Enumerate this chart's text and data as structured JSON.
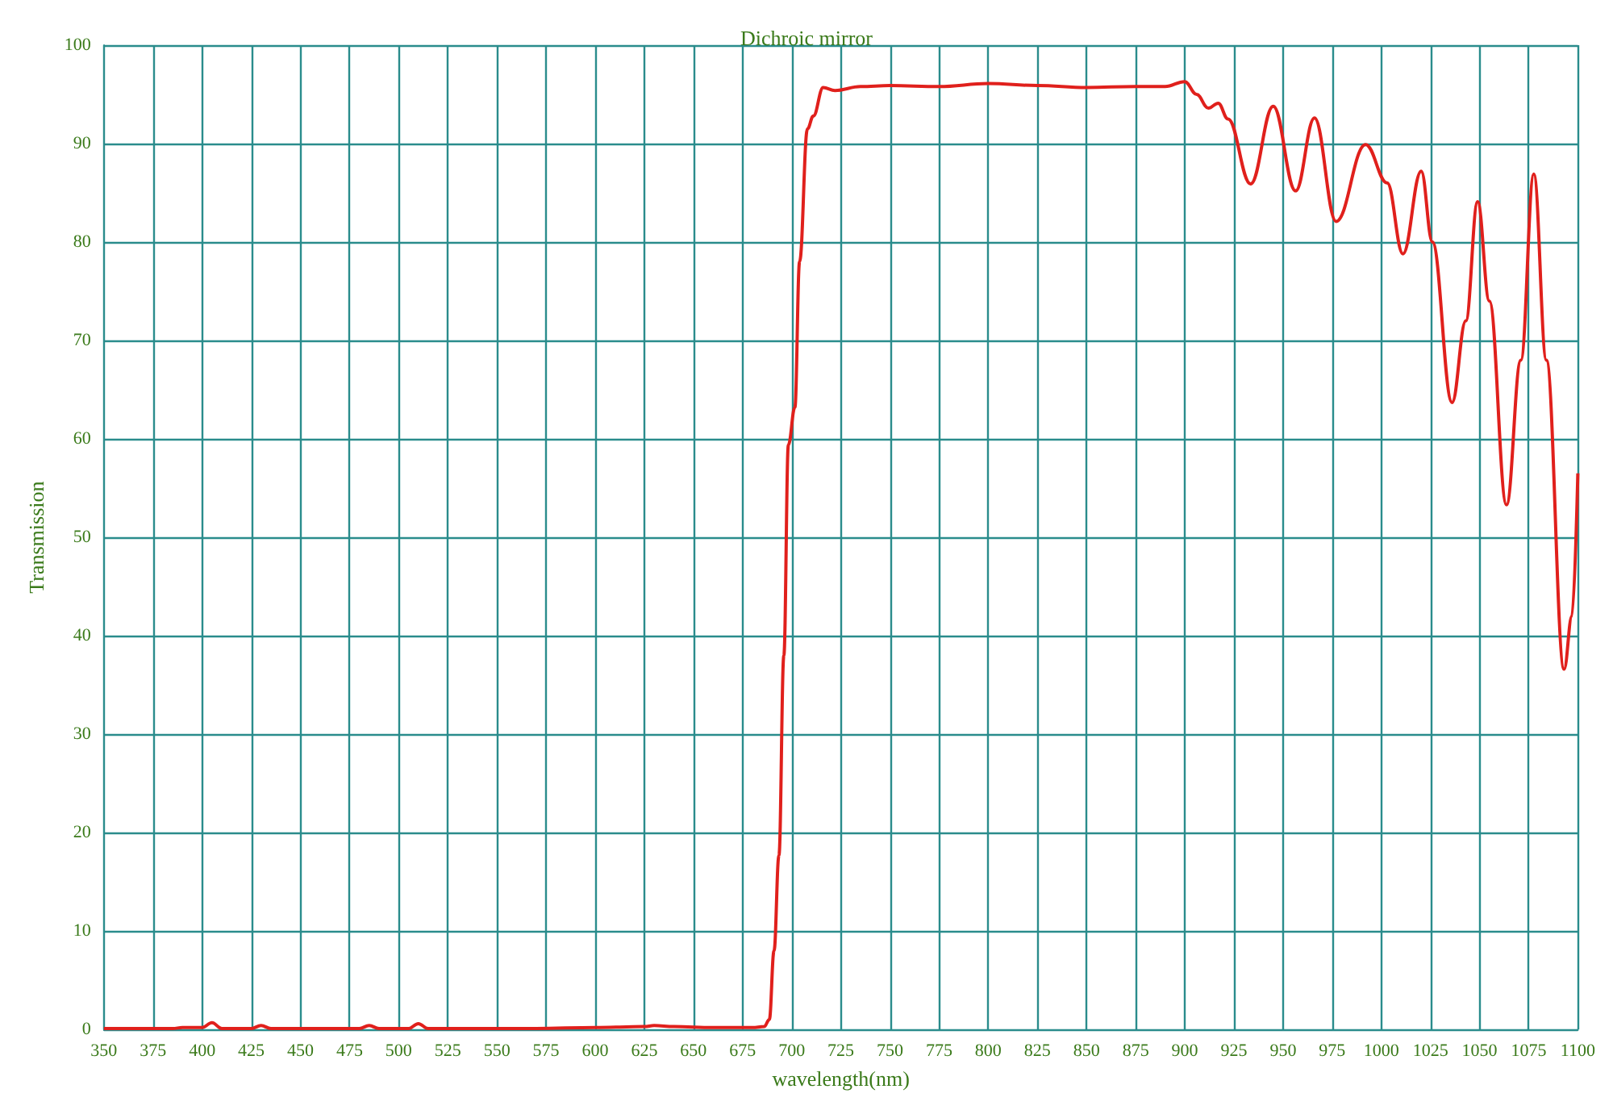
{
  "chart_data": {
    "type": "line",
    "title": "Dichroic mirror",
    "xlabel": "wavelength(nm)",
    "ylabel": "Transmission",
    "x": [
      350,
      385,
      390,
      400,
      405,
      410,
      425,
      430,
      435,
      480,
      485,
      490,
      505,
      510,
      515,
      570,
      600,
      625,
      630,
      640,
      660,
      680,
      686,
      688.6,
      691,
      693.5,
      696,
      698.3,
      701.6,
      704,
      708,
      711,
      716,
      722,
      735,
      750,
      775,
      800,
      825,
      850,
      875,
      890,
      900,
      906,
      912,
      917,
      922,
      933.5,
      945,
      956.4,
      966,
      977,
      992,
      1003,
      1011,
      1020.3,
      1026,
      1036,
      1043,
      1049,
      1055,
      1063.7,
      1071,
      1077.6,
      1084,
      1093,
      1097,
      1100
    ],
    "series": [
      {
        "color": "#e0201c",
        "values": [
          0.1,
          0.1,
          0.2,
          0.2,
          0.7,
          0.1,
          0.1,
          0.4,
          0.1,
          0.1,
          0.4,
          0.1,
          0.1,
          0.6,
          0.1,
          0.1,
          0.2,
          0.3,
          0.4,
          0.3,
          0.2,
          0.2,
          0.3,
          1,
          8,
          17.7,
          38,
          59.4,
          63.2,
          78,
          91.5,
          92.8,
          95.7,
          95.4,
          95.8,
          95.9,
          95.8,
          96.1,
          95.9,
          95.7,
          95.8,
          95.8,
          96.3,
          95,
          93.6,
          94.1,
          92.5,
          85.9,
          93.8,
          85.2,
          92.6,
          82.1,
          89.9,
          86,
          78.8,
          87.2,
          80,
          63.7,
          72,
          84.1,
          74,
          53.3,
          68,
          86.9,
          68,
          36.6,
          42,
          56.5
        ]
      }
    ],
    "xlim": [
      350,
      1100
    ],
    "xticks": [
      350,
      375,
      400,
      425,
      450,
      475,
      500,
      525,
      550,
      575,
      600,
      625,
      650,
      675,
      700,
      725,
      750,
      775,
      800,
      825,
      850,
      875,
      900,
      925,
      950,
      975,
      1000,
      1025,
      1050,
      1075,
      1100
    ],
    "ylim": [
      0,
      100
    ],
    "yticks": [
      0,
      10,
      20,
      30,
      40,
      50,
      60,
      70,
      80,
      90,
      100
    ],
    "grid": true,
    "marker": "none",
    "line_style": "solid"
  }
}
